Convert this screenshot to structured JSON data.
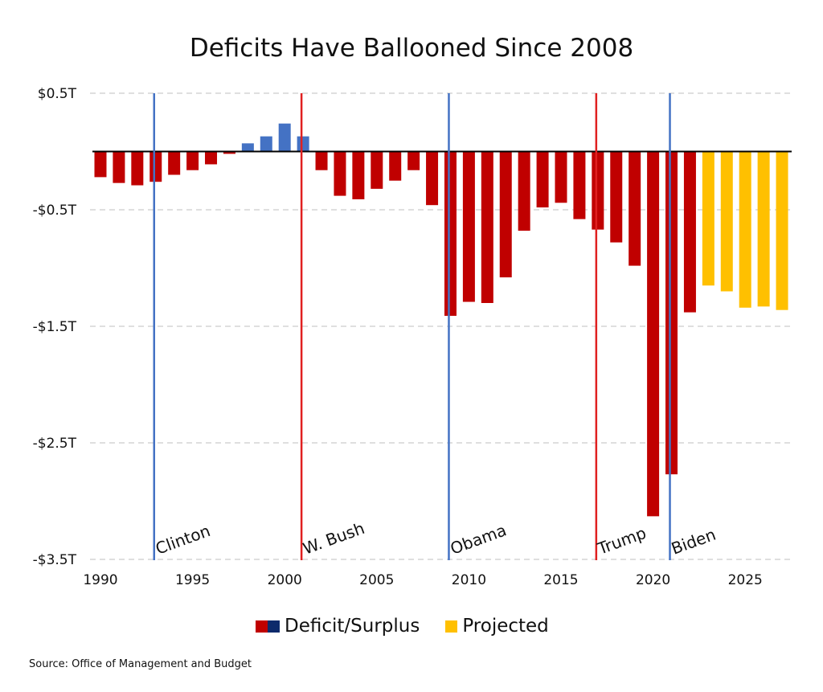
{
  "chart_data": {
    "type": "bar",
    "title": "Deficits Have Ballooned Since 2008",
    "xlabel": "",
    "ylabel": "",
    "ylim": [
      -3.5,
      0.5
    ],
    "yticks": [
      0.5,
      -0.5,
      -1.5,
      -2.5,
      -3.5
    ],
    "ytick_labels": [
      "$0.5T",
      "-$0.5T",
      "-$1.5T",
      "-$2.5T",
      "-$3.5T"
    ],
    "xticks": [
      1990,
      1995,
      2000,
      2005,
      2010,
      2015,
      2020,
      2025
    ],
    "grid": "horizontal dashed",
    "years": [
      1990,
      1991,
      1992,
      1993,
      1994,
      1995,
      1996,
      1997,
      1998,
      1999,
      2000,
      2001,
      2002,
      2003,
      2004,
      2005,
      2006,
      2007,
      2008,
      2009,
      2010,
      2011,
      2012,
      2013,
      2014,
      2015,
      2016,
      2017,
      2018,
      2019,
      2020,
      2021,
      2022,
      2023,
      2024,
      2025,
      2026,
      2027
    ],
    "values": [
      -0.22,
      -0.27,
      -0.29,
      -0.26,
      -0.2,
      -0.16,
      -0.11,
      -0.02,
      0.07,
      0.13,
      0.24,
      0.13,
      -0.16,
      -0.38,
      -0.41,
      -0.32,
      -0.25,
      -0.16,
      -0.46,
      -1.41,
      -1.29,
      -1.3,
      -1.08,
      -0.68,
      -0.48,
      -0.44,
      -0.58,
      -0.67,
      -0.78,
      -0.98,
      -3.13,
      -2.77,
      -1.38,
      -1.15,
      -1.2,
      -1.34,
      -1.33,
      -1.36
    ],
    "projected_from": 2023,
    "legend": [
      {
        "label": "Deficit/Surplus",
        "colors": [
          "#c00000",
          "#0d2a6b"
        ]
      },
      {
        "label": "Projected",
        "colors": [
          "#ffc000"
        ]
      }
    ],
    "legend_position": "bottom",
    "annotations": [
      {
        "label": "Clinton",
        "year": 1993,
        "color": "#4472c4"
      },
      {
        "label": "W. Bush",
        "year": 2001,
        "color": "#e02020"
      },
      {
        "label": "Obama",
        "year": 2009,
        "color": "#4472c4"
      },
      {
        "label": "Trump",
        "year": 2017,
        "color": "#e02020"
      },
      {
        "label": "Biden",
        "year": 2021,
        "color": "#4472c4"
      }
    ],
    "colors": {
      "deficit": "#c00000",
      "surplus": "#4472c4",
      "projected": "#ffc000"
    }
  },
  "source": "Source: Office of Management and Budget"
}
